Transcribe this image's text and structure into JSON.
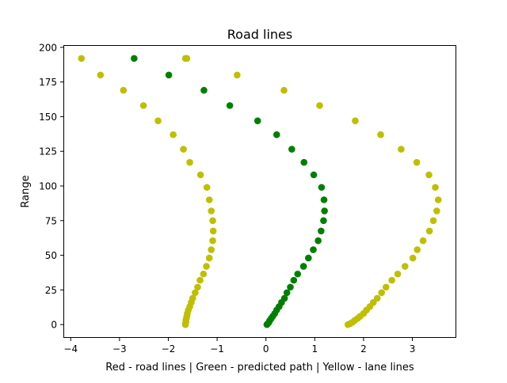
{
  "chart_data": {
    "type": "scatter",
    "title": "Road lines",
    "xlabel": "Red - road lines | Green - predicted path | Yellow - lane lines",
    "ylabel": "Range",
    "xlim": [
      -4.15,
      3.9
    ],
    "ylim": [
      -9.6,
      201.6
    ],
    "x_ticks": [
      -4,
      -3,
      -2,
      -1,
      0,
      1,
      2,
      3
    ],
    "y_ticks": [
      0,
      25,
      50,
      75,
      100,
      125,
      150,
      175,
      200
    ],
    "grid": false,
    "series": [
      {
        "color": "#bfbf00",
        "points": [
          [
            -1.65,
            0
          ],
          [
            -1.65,
            0.8
          ],
          [
            -1.64,
            1.6
          ],
          [
            -1.64,
            3
          ],
          [
            -1.63,
            4.5
          ],
          [
            -1.62,
            6
          ],
          [
            -1.61,
            8
          ],
          [
            -1.59,
            10.5
          ],
          [
            -1.56,
            13
          ],
          [
            -1.53,
            16
          ],
          [
            -1.5,
            19
          ],
          [
            -1.45,
            23
          ],
          [
            -1.4,
            27
          ],
          [
            -1.35,
            32
          ],
          [
            -1.28,
            36.5
          ],
          [
            -1.22,
            42
          ],
          [
            -1.16,
            48
          ],
          [
            -1.12,
            54
          ],
          [
            -1.09,
            60.5
          ],
          [
            -1.08,
            67.5
          ],
          [
            -1.09,
            75
          ],
          [
            -1.12,
            82
          ],
          [
            -1.16,
            90
          ],
          [
            -1.21,
            99
          ],
          [
            -1.34,
            108
          ],
          [
            -1.56,
            117
          ],
          [
            -1.69,
            126.5
          ],
          [
            -1.9,
            137
          ],
          [
            -2.21,
            147
          ],
          [
            -2.51,
            158
          ],
          [
            -2.92,
            169
          ],
          [
            -3.39,
            180
          ],
          [
            -3.78,
            192
          ],
          [
            -1.65,
            192
          ]
        ]
      },
      {
        "color": "#008000",
        "points": [
          [
            0.02,
            0
          ],
          [
            0.04,
            0.8
          ],
          [
            0.06,
            1.6
          ],
          [
            0.08,
            3
          ],
          [
            0.11,
            4.5
          ],
          [
            0.14,
            6
          ],
          [
            0.18,
            8
          ],
          [
            0.22,
            10.5
          ],
          [
            0.27,
            13
          ],
          [
            0.32,
            16
          ],
          [
            0.38,
            19
          ],
          [
            0.43,
            23
          ],
          [
            0.5,
            27
          ],
          [
            0.57,
            32
          ],
          [
            0.65,
            36.5
          ],
          [
            0.77,
            42
          ],
          [
            0.87,
            48
          ],
          [
            0.97,
            54
          ],
          [
            1.07,
            60.5
          ],
          [
            1.13,
            67.5
          ],
          [
            1.18,
            75
          ],
          [
            1.2,
            82
          ],
          [
            1.19,
            90
          ],
          [
            1.14,
            99
          ],
          [
            0.98,
            108
          ],
          [
            0.78,
            117
          ],
          [
            0.53,
            126.5
          ],
          [
            0.22,
            137
          ],
          [
            -0.17,
            147
          ],
          [
            -0.74,
            158
          ],
          [
            -1.27,
            169
          ],
          [
            -1.99,
            180
          ],
          [
            -2.7,
            192
          ]
        ]
      },
      {
        "color": "#bfbf00",
        "points": [
          [
            1.68,
            0
          ],
          [
            1.73,
            0.8
          ],
          [
            1.77,
            1.6
          ],
          [
            1.82,
            3
          ],
          [
            1.88,
            4.5
          ],
          [
            1.93,
            6
          ],
          [
            2.0,
            8
          ],
          [
            2.06,
            10.5
          ],
          [
            2.13,
            13
          ],
          [
            2.2,
            16
          ],
          [
            2.28,
            19
          ],
          [
            2.37,
            23
          ],
          [
            2.46,
            27
          ],
          [
            2.58,
            32
          ],
          [
            2.7,
            36.5
          ],
          [
            2.85,
            42
          ],
          [
            3.01,
            48
          ],
          [
            3.1,
            54
          ],
          [
            3.22,
            60.5
          ],
          [
            3.35,
            67.5
          ],
          [
            3.43,
            75
          ],
          [
            3.5,
            82
          ],
          [
            3.53,
            90
          ],
          [
            3.47,
            99
          ],
          [
            3.34,
            108
          ],
          [
            3.09,
            117
          ],
          [
            2.77,
            126.5
          ],
          [
            2.35,
            137
          ],
          [
            1.83,
            147
          ],
          [
            1.1,
            158
          ],
          [
            0.37,
            169
          ],
          [
            -0.59,
            180
          ],
          [
            -1.62,
            192
          ]
        ]
      }
    ]
  }
}
